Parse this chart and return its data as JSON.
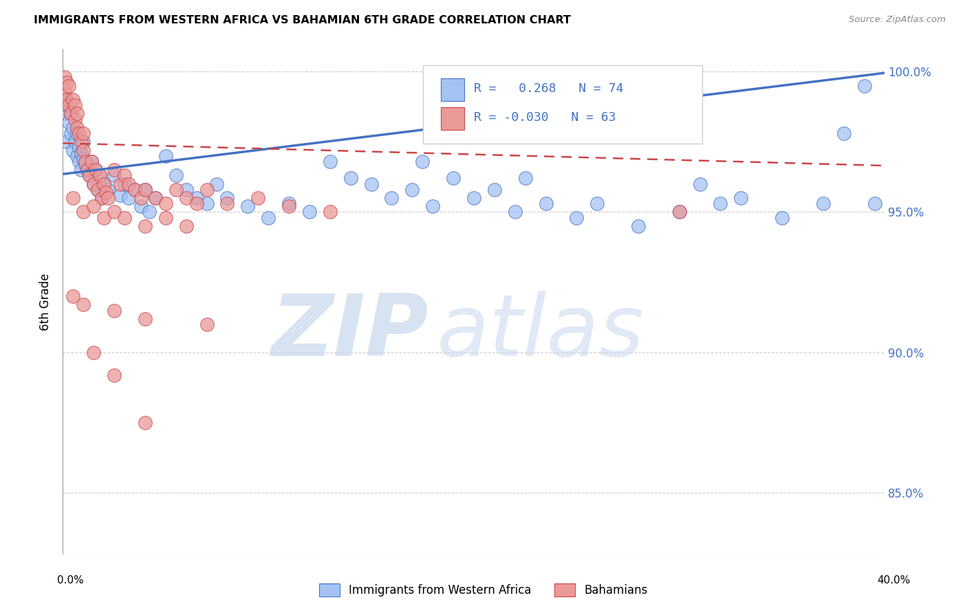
{
  "title": "IMMIGRANTS FROM WESTERN AFRICA VS BAHAMIAN 6TH GRADE CORRELATION CHART",
  "source": "Source: ZipAtlas.com",
  "ylabel": "6th Grade",
  "legend_label1": "Immigrants from Western Africa",
  "legend_label2": "Bahamians",
  "R1": 0.268,
  "N1": 74,
  "R2": -0.03,
  "N2": 63,
  "blue_color": "#a4c2f4",
  "pink_color": "#ea9999",
  "line_blue": "#4472c4",
  "line_pink": "#cc4444",
  "x_min": 0.0,
  "x_max": 0.4,
  "y_min": 0.828,
  "y_max": 1.008,
  "ytick_vals": [
    0.85,
    0.9,
    0.95,
    1.0
  ],
  "ytick_labels": [
    "85.0%",
    "90.0%",
    "95.0%",
    "100.0%"
  ],
  "blue_line_y0": 0.9635,
  "blue_line_y1": 0.9995,
  "pink_line_y0": 0.9745,
  "pink_line_y1": 0.9665,
  "blue_points_x": [
    0.001,
    0.001,
    0.002,
    0.002,
    0.003,
    0.004,
    0.004,
    0.005,
    0.005,
    0.006,
    0.007,
    0.007,
    0.008,
    0.008,
    0.009,
    0.009,
    0.01,
    0.01,
    0.011,
    0.012,
    0.013,
    0.014,
    0.015,
    0.016,
    0.017,
    0.018,
    0.019,
    0.02,
    0.022,
    0.025,
    0.028,
    0.03,
    0.032,
    0.035,
    0.038,
    0.04,
    0.042,
    0.045,
    0.05,
    0.055,
    0.06,
    0.065,
    0.07,
    0.075,
    0.08,
    0.09,
    0.1,
    0.11,
    0.12,
    0.13,
    0.14,
    0.15,
    0.16,
    0.17,
    0.175,
    0.18,
    0.19,
    0.2,
    0.21,
    0.22,
    0.225,
    0.235,
    0.25,
    0.26,
    0.28,
    0.3,
    0.31,
    0.32,
    0.33,
    0.35,
    0.37,
    0.38,
    0.39,
    0.395
  ],
  "blue_points_y": [
    0.985,
    0.99,
    0.975,
    0.988,
    0.982,
    0.978,
    0.985,
    0.972,
    0.98,
    0.975,
    0.97,
    0.978,
    0.968,
    0.973,
    0.965,
    0.971,
    0.969,
    0.975,
    0.967,
    0.965,
    0.963,
    0.968,
    0.96,
    0.965,
    0.958,
    0.963,
    0.955,
    0.96,
    0.958,
    0.963,
    0.956,
    0.96,
    0.955,
    0.958,
    0.952,
    0.958,
    0.95,
    0.955,
    0.97,
    0.963,
    0.958,
    0.955,
    0.953,
    0.96,
    0.955,
    0.952,
    0.948,
    0.953,
    0.95,
    0.968,
    0.962,
    0.96,
    0.955,
    0.958,
    0.968,
    0.952,
    0.962,
    0.955,
    0.958,
    0.95,
    0.962,
    0.953,
    0.948,
    0.953,
    0.945,
    0.95,
    0.96,
    0.953,
    0.955,
    0.948,
    0.953,
    0.978,
    0.995,
    0.953
  ],
  "pink_points_x": [
    0.001,
    0.001,
    0.002,
    0.002,
    0.003,
    0.003,
    0.004,
    0.005,
    0.006,
    0.006,
    0.007,
    0.007,
    0.008,
    0.009,
    0.01,
    0.01,
    0.011,
    0.012,
    0.013,
    0.014,
    0.015,
    0.016,
    0.017,
    0.018,
    0.019,
    0.02,
    0.021,
    0.022,
    0.025,
    0.028,
    0.03,
    0.032,
    0.035,
    0.038,
    0.04,
    0.045,
    0.05,
    0.055,
    0.06,
    0.065,
    0.07,
    0.08,
    0.095,
    0.11,
    0.13,
    0.005,
    0.01,
    0.015,
    0.02,
    0.025,
    0.03,
    0.04,
    0.05,
    0.06,
    0.005,
    0.01,
    0.025,
    0.04,
    0.07,
    0.3,
    0.015,
    0.025,
    0.04
  ],
  "pink_points_y": [
    0.998,
    0.993,
    0.996,
    0.99,
    0.988,
    0.995,
    0.985,
    0.99,
    0.983,
    0.988,
    0.98,
    0.985,
    0.978,
    0.975,
    0.972,
    0.978,
    0.968,
    0.965,
    0.963,
    0.968,
    0.96,
    0.965,
    0.958,
    0.963,
    0.955,
    0.96,
    0.957,
    0.955,
    0.965,
    0.96,
    0.963,
    0.96,
    0.958,
    0.955,
    0.958,
    0.955,
    0.953,
    0.958,
    0.955,
    0.953,
    0.958,
    0.953,
    0.955,
    0.952,
    0.95,
    0.955,
    0.95,
    0.952,
    0.948,
    0.95,
    0.948,
    0.945,
    0.948,
    0.945,
    0.92,
    0.917,
    0.915,
    0.912,
    0.91,
    0.95,
    0.9,
    0.892,
    0.875
  ]
}
